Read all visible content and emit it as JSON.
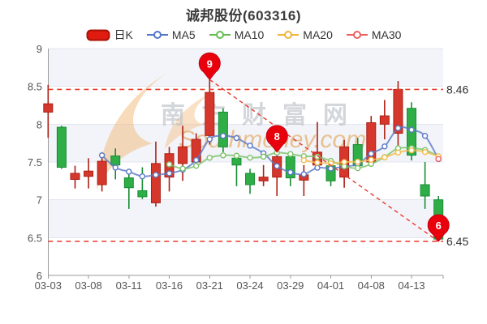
{
  "title": "诚邦股份(603316)",
  "legend": [
    {
      "label": "日K",
      "type": "candle",
      "color": "#e01b10",
      "border": "#a81105"
    },
    {
      "label": "MA5",
      "type": "line",
      "color": "#5377c8"
    },
    {
      "label": "MA10",
      "type": "line",
      "color": "#64bd52"
    },
    {
      "label": "MA20",
      "type": "line",
      "color": "#f3b23a"
    },
    {
      "label": "MA30",
      "type": "line",
      "color": "#ed5f5f"
    }
  ],
  "watermark": {
    "text_cn": "南方财富网",
    "text_en": "Southmoney.com"
  },
  "chart_data": {
    "type": "candlestick",
    "title": "诚邦股份(603316)",
    "ylim": [
      6,
      9
    ],
    "y_ticks": [
      6,
      6.5,
      7,
      7.5,
      8,
      8.5,
      9
    ],
    "x_tick_labels": [
      "03-03",
      "03-08",
      "03-11",
      "03-16",
      "03-21",
      "03-24",
      "03-29",
      "04-01",
      "04-08",
      "04-13"
    ],
    "x_tick_every": 3,
    "candle_columns": [
      "date",
      "open",
      "high",
      "low",
      "close"
    ],
    "candles": [
      [
        "03-03",
        8.16,
        8.52,
        7.82,
        8.27
      ],
      [
        "03-04",
        7.96,
        7.98,
        7.41,
        7.43
      ],
      [
        "03-07",
        7.27,
        7.45,
        7.15,
        7.35
      ],
      [
        "03-08",
        7.31,
        7.55,
        7.15,
        7.38
      ],
      [
        "03-09",
        7.2,
        7.63,
        7.11,
        7.51
      ],
      [
        "03-10",
        7.58,
        7.68,
        7.27,
        7.46
      ],
      [
        "03-11",
        7.29,
        7.34,
        6.88,
        7.16
      ],
      [
        "03-14",
        7.12,
        7.43,
        7.01,
        7.04
      ],
      [
        "03-15",
        6.96,
        7.77,
        6.91,
        7.48
      ],
      [
        "03-16",
        7.3,
        7.7,
        7.11,
        7.61
      ],
      [
        "03-17",
        7.48,
        7.98,
        7.25,
        7.7
      ],
      [
        "03-18",
        7.5,
        7.88,
        7.46,
        7.8
      ],
      [
        "03-21",
        7.85,
        8.59,
        7.73,
        8.42
      ],
      [
        "03-22",
        8.16,
        8.21,
        7.63,
        7.7
      ],
      [
        "03-23",
        7.55,
        7.61,
        7.18,
        7.46
      ],
      [
        "03-24",
        7.35,
        7.41,
        7.08,
        7.2
      ],
      [
        "03-25",
        7.25,
        7.46,
        7.18,
        7.3
      ],
      [
        "03-28",
        7.3,
        7.63,
        7.05,
        7.57
      ],
      [
        "03-29",
        7.57,
        7.59,
        7.18,
        7.29
      ],
      [
        "03-30",
        7.26,
        7.46,
        7.05,
        7.33
      ],
      [
        "03-31",
        7.46,
        8.03,
        7.41,
        7.63
      ],
      [
        "04-01",
        7.45,
        7.5,
        7.18,
        7.25
      ],
      [
        "04-06",
        7.3,
        7.79,
        7.16,
        7.7
      ],
      [
        "04-07",
        7.73,
        7.82,
        7.39,
        7.45
      ],
      [
        "04-08",
        7.5,
        8.11,
        7.47,
        8.02
      ],
      [
        "04-11",
        8.0,
        8.32,
        7.8,
        8.11
      ],
      [
        "04-12",
        7.88,
        8.57,
        7.71,
        8.46
      ],
      [
        "04-13",
        8.21,
        8.29,
        7.52,
        7.59
      ],
      [
        "04-14",
        7.2,
        7.5,
        6.88,
        7.05
      ],
      [
        "04-15",
        7.0,
        7.05,
        6.45,
        6.48
      ]
    ],
    "ma_series": [
      {
        "name": "MA5",
        "period": 5,
        "color": "#5b79c7"
      },
      {
        "name": "MA10",
        "period": 10,
        "color": "#7cc268"
      },
      {
        "name": "MA20",
        "period": 20,
        "color": "#f5bd4d"
      },
      {
        "name": "MA30",
        "period": 30,
        "color": "#ee6666"
      }
    ],
    "ref_lines": [
      {
        "value": 8.46,
        "label": "8.46"
      },
      {
        "value": 6.45,
        "label": "6.45"
      }
    ],
    "markers": [
      {
        "label": "9",
        "index": 12,
        "value": 8.59
      },
      {
        "label": "8",
        "index": 17,
        "value": 7.63
      },
      {
        "label": "6",
        "index": 29,
        "value": 6.45
      }
    ],
    "trend_line": {
      "from_index": 12,
      "from_value": 8.59,
      "to_index": 29,
      "to_value": 6.45
    },
    "legend_position": "top",
    "grid": true,
    "colors": {
      "up": "#d5372c",
      "up_border": "#ab1f14",
      "down": "#2fae47",
      "down_border": "#178d34",
      "pin": "#e8000d",
      "pin_border": "#c70011",
      "dashed": "#e8392c",
      "grid": "#e3e6f0",
      "band": "#f2f4f9",
      "axis": "#999999",
      "tick_label": "#555555",
      "ref_label": "#2f2f2f",
      "watermark_gray": "#b9bdc6",
      "watermark_orange": "#df8f2d"
    }
  }
}
